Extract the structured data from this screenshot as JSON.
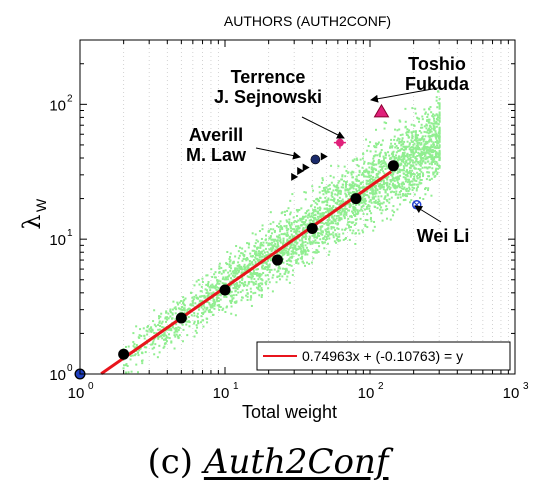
{
  "chart_data": {
    "type": "scatter",
    "title": "AUTHORS (AUTH2CONF)",
    "xlabel": "Total weight",
    "ylabel": "λ",
    "ylabel_sub": "W",
    "xscale": "log",
    "yscale": "log",
    "xlim": [
      1,
      1000
    ],
    "ylim": [
      1,
      300
    ],
    "grid": "x-dotted",
    "x_ticks": [
      {
        "base": "10",
        "exp": "0",
        "value": 1
      },
      {
        "base": "10",
        "exp": "1",
        "value": 10
      },
      {
        "base": "10",
        "exp": "2",
        "value": 100
      },
      {
        "base": "10",
        "exp": "3",
        "value": 1000
      }
    ],
    "y_ticks": [
      {
        "base": "10",
        "exp": "0",
        "value": 1
      },
      {
        "base": "10",
        "exp": "1",
        "value": 10
      },
      {
        "base": "10",
        "exp": "2",
        "value": 100
      }
    ],
    "fit_line": {
      "label": "0.74963x + (-0.10763) = y",
      "slope": 0.74963,
      "intercept": -0.10763,
      "x_range": [
        1.4,
        140
      ],
      "color": "#e8141c"
    },
    "binned_points": {
      "color": "#000000",
      "x": [
        1,
        2,
        5,
        10,
        23,
        40,
        80,
        145
      ],
      "y": [
        1,
        1.4,
        2.6,
        4.2,
        7.0,
        12,
        20,
        35
      ]
    },
    "cloud_color": "#90ee90",
    "highlighted": [
      {
        "x": 1,
        "y": 1,
        "marker": "circle",
        "color": "#1f3fbf"
      },
      {
        "x": 120,
        "y": 88,
        "marker": "triangle",
        "color": "#e0207a"
      },
      {
        "x": 62,
        "y": 52,
        "marker": "star",
        "color": "#e0207a"
      },
      {
        "x": 42,
        "y": 39,
        "marker": "circle",
        "color": "#1a2a6a"
      },
      {
        "x": 210,
        "y": 18,
        "marker": "circle-x",
        "color": "#2040d0"
      }
    ],
    "arrowheads": [
      {
        "x": 30,
        "y": 29
      },
      {
        "x": 33,
        "y": 32
      },
      {
        "x": 36,
        "y": 34
      },
      {
        "x": 48,
        "y": 41
      }
    ],
    "annotations": [
      {
        "lines": [
          "Toshio",
          "Fukuda"
        ],
        "tx": 437,
        "ty": 70,
        "from": [
          438,
          88
        ],
        "to": [
          371,
          100
        ]
      },
      {
        "lines": [
          "Terrence",
          "J. Sejnowski"
        ],
        "tx": 268,
        "ty": 83,
        "from": [
          302,
          117
        ],
        "to": [
          344,
          138
        ]
      },
      {
        "lines": [
          "Averill",
          "M. Law"
        ],
        "tx": 216,
        "ty": 141,
        "from": [
          256,
          148
        ],
        "to": [
          300,
          157
        ]
      },
      {
        "lines": [
          "Wei Li"
        ],
        "tx": 443,
        "ty": 242,
        "from": [
          441,
          222
        ],
        "to": [
          415,
          206
        ]
      }
    ]
  },
  "caption": {
    "prefix": "(c) ",
    "name": "Auth2Conf"
  }
}
